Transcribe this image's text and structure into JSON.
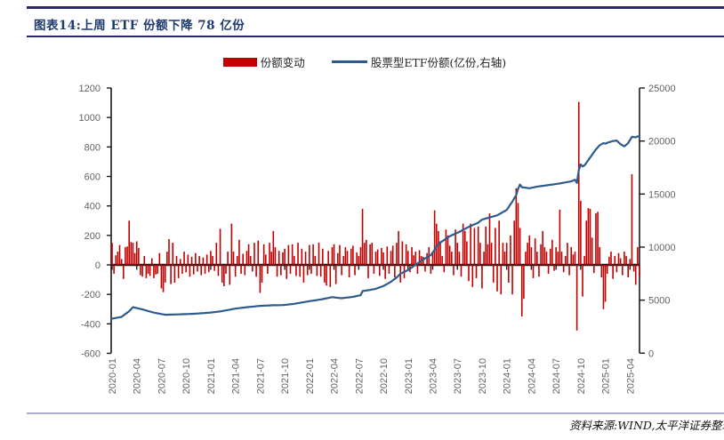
{
  "title": "图表14:上周 ETF 份额下降 78 亿份",
  "source": "资料来源:WIND,太平洋证券整理",
  "colors": {
    "bar": "#C00000",
    "line": "#2E5B8C",
    "axis": "#1A1A1A",
    "tick_label": "#636363",
    "title": "#1F3A6E",
    "top_rule": "#2A2A6A",
    "bottom_rule": "#ABABCE"
  },
  "legend": {
    "items": [
      {
        "label": "份额变动",
        "type": "bar",
        "color": "#C00000"
      },
      {
        "label": "股票型ETF份额(亿份,右轴)",
        "type": "line",
        "color": "#2E5B8C"
      }
    ]
  },
  "chart_data": {
    "type": "combo",
    "x_unit": "week",
    "x_tick_labels": [
      "2020-01",
      "2020-04",
      "2020-07",
      "2020-10",
      "2021-01",
      "2021-04",
      "2021-07",
      "2021-10",
      "2022-01",
      "2022-04",
      "2022-07",
      "2022-10",
      "2023-01",
      "2023-04",
      "2023-07",
      "2023-10",
      "2024-01",
      "2024-04",
      "2024-07",
      "2024-10",
      "2025-01",
      "2025-04"
    ],
    "weeks_per_tick": 13,
    "left_axis": {
      "min": -600,
      "max": 1200,
      "step": 200,
      "series": "份额变动"
    },
    "right_axis": {
      "min": 0,
      "max": 25000,
      "step": 5000,
      "series": "股票型ETF份额(亿份,右轴)"
    },
    "grid": false,
    "legend_position": "top-center",
    "series": [
      {
        "name": "份额变动",
        "type": "bar",
        "axis": "left",
        "color": "#C00000",
        "values": [
          150,
          -60,
          65,
          90,
          135,
          40,
          -95,
          120,
          125,
          300,
          155,
          150,
          80,
          160,
          115,
          -70,
          -80,
          60,
          -90,
          -60,
          -75,
          45,
          -90,
          -65,
          -60,
          80,
          -160,
          -185,
          -120,
          90,
          175,
          -130,
          150,
          -120,
          60,
          -90,
          40,
          -60,
          90,
          -50,
          70,
          -80,
          55,
          -65,
          80,
          -45,
          60,
          -70,
          50,
          -60,
          70,
          -50,
          95,
          60,
          -40,
          150,
          -75,
          245,
          -120,
          -145,
          -60,
          90,
          -135,
          280,
          90,
          -80,
          60,
          170,
          -60,
          75,
          -70,
          95,
          140,
          60,
          -45,
          150,
          -80,
          165,
          -190,
          -120,
          140,
          70,
          -60,
          150,
          90,
          230,
          120,
          -80,
          95,
          -70,
          85,
          110,
          -95,
          135,
          -60,
          140,
          60,
          -75,
          150,
          -80,
          110,
          -120,
          90,
          -70,
          135,
          -60,
          140,
          60,
          -75,
          150,
          -80,
          110,
          -120,
          -140,
          95,
          -150,
          120,
          140,
          -130,
          80,
          135,
          -70,
          60,
          120,
          95,
          -85,
          110,
          130,
          -70,
          85,
          60,
          120,
          380,
          150,
          170,
          -90,
          140,
          150,
          -60,
          90,
          105,
          -75,
          115,
          85,
          -95,
          125,
          -60,
          95,
          130,
          -85,
          150,
          230,
          -120,
          160,
          -90,
          140,
          95,
          -50,
          120,
          65,
          90,
          -60,
          100,
          60,
          55,
          -45,
          80,
          120,
          -60,
          90,
          370,
          280,
          230,
          160,
          60,
          -50,
          240,
          200,
          130,
          90,
          -70,
          240,
          150,
          90,
          -80,
          280,
          230,
          160,
          -110,
          280,
          -150,
          250,
          -90,
          260,
          150,
          -160,
          90,
          260,
          140,
          350,
          150,
          -120,
          250,
          -180,
          300,
          -200,
          150,
          90,
          150,
          -120,
          200,
          -200,
          300,
          520,
          420,
          250,
          -350,
          -230,
          90,
          150,
          200,
          120,
          -90,
          180,
          90,
          -80,
          140,
          230,
          120,
          90,
          -60,
          110,
          170,
          -40,
          120,
          90,
          375,
          90,
          -50,
          60,
          150,
          -70,
          120,
          70,
          90,
          -445,
          1106,
          435,
          -215,
          60,
          300,
          385,
          380,
          185,
          -55,
          350,
          360,
          120,
          -85,
          -300,
          -250,
          -60,
          55,
          90,
          -95,
          60,
          -50,
          80,
          45,
          -70,
          90,
          60,
          -85,
          40,
          615,
          -45,
          -135,
          120,
          -78
        ]
      },
      {
        "name": "股票型ETF份额(亿份,右轴)",
        "type": "line",
        "axis": "right",
        "color": "#2E5B8C",
        "anchor_points": [
          [
            0,
            3250
          ],
          [
            5,
            3420
          ],
          [
            9,
            3950
          ],
          [
            11,
            4330
          ],
          [
            16,
            4120
          ],
          [
            22,
            3820
          ],
          [
            28,
            3620
          ],
          [
            36,
            3660
          ],
          [
            44,
            3720
          ],
          [
            52,
            3830
          ],
          [
            58,
            3960
          ],
          [
            65,
            4200
          ],
          [
            70,
            4310
          ],
          [
            78,
            4460
          ],
          [
            84,
            4510
          ],
          [
            90,
            4530
          ],
          [
            96,
            4650
          ],
          [
            104,
            4900
          ],
          [
            110,
            5060
          ],
          [
            116,
            5280
          ],
          [
            121,
            5180
          ],
          [
            127,
            5310
          ],
          [
            131,
            5460
          ],
          [
            132,
            5850
          ],
          [
            136,
            5960
          ],
          [
            139,
            6070
          ],
          [
            143,
            6330
          ],
          [
            147,
            6730
          ],
          [
            150,
            7130
          ],
          [
            152,
            7490
          ],
          [
            156,
            7830
          ],
          [
            160,
            8330
          ],
          [
            164,
            8830
          ],
          [
            168,
            9250
          ],
          [
            170,
            9730
          ],
          [
            171,
            10060
          ],
          [
            173,
            10430
          ],
          [
            178,
            11030
          ],
          [
            183,
            11430
          ],
          [
            188,
            11910
          ],
          [
            193,
            12300
          ],
          [
            195,
            12600
          ],
          [
            199,
            12800
          ],
          [
            203,
            13000
          ],
          [
            208,
            13500
          ],
          [
            211,
            14300
          ],
          [
            213,
            14900
          ],
          [
            214,
            15500
          ],
          [
            215,
            15900
          ],
          [
            216,
            15650
          ],
          [
            220,
            15550
          ],
          [
            224,
            15700
          ],
          [
            230,
            15850
          ],
          [
            236,
            16000
          ],
          [
            242,
            16200
          ],
          [
            244,
            16350
          ],
          [
            245,
            16050
          ],
          [
            246,
            17250
          ],
          [
            247,
            17800
          ],
          [
            248,
            17600
          ],
          [
            249,
            17700
          ],
          [
            251,
            18200
          ],
          [
            253,
            18700
          ],
          [
            255,
            19200
          ],
          [
            257,
            19600
          ],
          [
            259,
            19800
          ],
          [
            260,
            19750
          ],
          [
            262,
            19900
          ],
          [
            264,
            20000
          ],
          [
            266,
            20050
          ],
          [
            268,
            19700
          ],
          [
            270,
            19500
          ],
          [
            272,
            19800
          ],
          [
            274,
            20400
          ],
          [
            276,
            20350
          ],
          [
            277,
            20450
          ],
          [
            278,
            20370
          ]
        ]
      }
    ]
  }
}
